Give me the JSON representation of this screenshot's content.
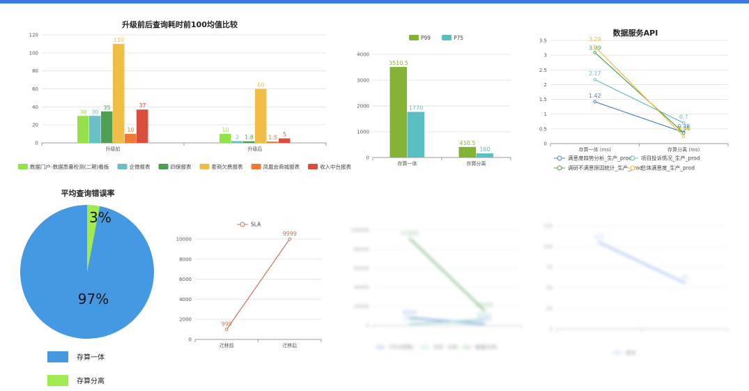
{
  "chart_data": [
    {
      "id": "c1",
      "type": "bar",
      "title": "升级前后查询耗时前100均值比较",
      "categories": [
        "升级前",
        "升级后"
      ],
      "ylim": [
        0,
        120
      ],
      "yticks": [
        0,
        20,
        40,
        60,
        80,
        100,
        120
      ],
      "legend_position": "bottom",
      "grid": true,
      "series": [
        {
          "name": "数据门户-数据质量检测(二期)看板",
          "color": "#95e14a",
          "values": [
            30,
            10
          ]
        },
        {
          "name": "企微报表",
          "color": "#68bfc6",
          "values": [
            30,
            2
          ]
        },
        {
          "name": "四保报表",
          "color": "#4e9e53",
          "values": [
            35,
            1.8
          ]
        },
        {
          "name": "套商欠费报表",
          "color": "#f0bd46",
          "values": [
            110,
            60
          ]
        },
        {
          "name": "凤凰会商城报表",
          "color": "#ee7a33",
          "values": [
            10,
            1.5
          ]
        },
        {
          "name": "收入中台报表",
          "color": "#d94e3c",
          "values": [
            37,
            5
          ]
        }
      ]
    },
    {
      "id": "c2",
      "type": "bar",
      "categories": [
        "存算一体",
        "存算分离"
      ],
      "ylim": [
        0,
        4000
      ],
      "yticks": [
        0,
        1000,
        2000,
        3000,
        4000
      ],
      "legend_position": "top",
      "grid": true,
      "series": [
        {
          "name": "P99",
          "color": "#83b334",
          "values": [
            3510.5,
            410.5
          ]
        },
        {
          "name": "P75",
          "color": "#5abfc2",
          "values": [
            1770,
            160
          ]
        }
      ]
    },
    {
      "id": "c3",
      "type": "line",
      "title": "数据服务API",
      "categories": [
        "存算一体 (ms)",
        "存算分离 (ms)"
      ],
      "ylim": [
        0,
        3.5
      ],
      "yticks": [
        0,
        0.5,
        1,
        1.5,
        2,
        2.5,
        3,
        3.5
      ],
      "legend_position": "bottom",
      "grid": true,
      "series": [
        {
          "name": "满意度趋势分析_生产_prod",
          "color": "#4a7fd0",
          "values": [
            1.42,
            0.38
          ]
        },
        {
          "name": "项目投诉情况_生产_prod",
          "color": "#68bfc6",
          "values": [
            2.17,
            0.7
          ]
        },
        {
          "name": "调研不满意原因统计_生产_prod",
          "color": "#4e9e53",
          "values": [
            3.09,
            0.36
          ]
        },
        {
          "name": "总体满意度_生产_prod",
          "color": "#f0bd46",
          "values": [
            3.29,
            0.24
          ]
        }
      ]
    },
    {
      "id": "c4",
      "type": "pie",
      "title": "平均查询错误率",
      "legend_position": "bottom-left",
      "slices": [
        {
          "name": "存算一体",
          "value": 97,
          "label": "97%",
          "color": "#4599e3"
        },
        {
          "name": "存算分离",
          "value": 3,
          "label": "3%",
          "color": "#a1eb4f"
        }
      ]
    },
    {
      "id": "c5",
      "type": "line",
      "categories": [
        "迁移前",
        "迁移后"
      ],
      "ylim": [
        0,
        10000
      ],
      "yticks": [
        0,
        2000,
        4000,
        6000,
        8000,
        10000
      ],
      "legend_position": "top",
      "grid": true,
      "series": [
        {
          "name": "SLA",
          "color": "#c9745c",
          "values": [
            999,
            9999
          ]
        }
      ]
    },
    {
      "id": "c6",
      "type": "line",
      "blurred": true,
      "categories": [
        "",
        ""
      ],
      "ylim": [
        0,
        100000
      ],
      "yticks": [
        0,
        20000,
        40000,
        60000,
        80000,
        100000
      ],
      "legend_position": "bottom",
      "grid": true,
      "series": [
        {
          "name": "CPU(核数)",
          "color": "#4a7fd0",
          "values": [
            8000,
            1500
          ]
        },
        {
          "name": "内存（GB）",
          "color": "#68bfc6",
          "values": [
            1500,
            6000
          ]
        },
        {
          "name": "磁盘(GB)",
          "color": "#4e9e53",
          "values": [
            91000,
            16000
          ]
        }
      ]
    },
    {
      "id": "c7",
      "type": "line",
      "blurred": true,
      "categories": [
        "",
        ""
      ],
      "ylim": [
        0,
        125
      ],
      "yticks": [
        0,
        25,
        50,
        75,
        100,
        125
      ],
      "legend_position": "bottom",
      "grid": true,
      "series": [
        {
          "name": "成本",
          "color": "#7ea7ec",
          "values": [
            105,
            56
          ]
        }
      ]
    }
  ]
}
